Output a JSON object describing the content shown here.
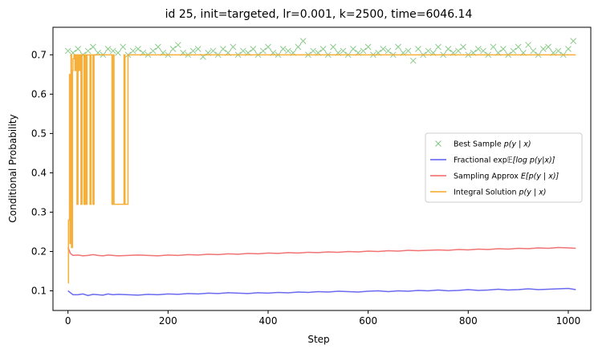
{
  "chart_data": {
    "type": "line",
    "title": "id 25, init=targeted, lr=0.001, k=2500, time=6046.14",
    "xlabel": "Step",
    "ylabel": "Conditional Probability",
    "xlim": [
      -30,
      1045
    ],
    "ylim": [
      0.05,
      0.77
    ],
    "xticks": [
      0,
      200,
      400,
      600,
      800,
      1000
    ],
    "yticks": [
      0.1,
      0.2,
      0.3,
      0.4,
      0.5,
      0.6,
      0.7
    ],
    "grid": false,
    "legend_position": "center-right",
    "series": [
      {
        "name": "Best Sample p(y | x)",
        "kind": "scatter",
        "marker": "x",
        "color": "#2ca02c",
        "x": [
          0,
          10,
          20,
          30,
          40,
          50,
          60,
          70,
          80,
          90,
          100,
          110,
          120,
          130,
          140,
          150,
          160,
          170,
          180,
          190,
          200,
          210,
          220,
          230,
          240,
          250,
          260,
          270,
          280,
          290,
          300,
          310,
          320,
          330,
          340,
          350,
          360,
          370,
          380,
          390,
          400,
          410,
          420,
          430,
          440,
          450,
          460,
          470,
          480,
          490,
          500,
          510,
          520,
          530,
          540,
          550,
          560,
          570,
          580,
          590,
          600,
          610,
          620,
          630,
          640,
          650,
          660,
          670,
          680,
          690,
          700,
          710,
          720,
          730,
          740,
          750,
          760,
          770,
          780,
          790,
          800,
          810,
          820,
          830,
          840,
          850,
          860,
          870,
          880,
          890,
          900,
          910,
          920,
          930,
          940,
          950,
          960,
          970,
          980,
          990,
          1000,
          1010
        ],
        "y": [
          0.71,
          0.705,
          0.715,
          0.7,
          0.71,
          0.72,
          0.705,
          0.7,
          0.715,
          0.71,
          0.705,
          0.72,
          0.7,
          0.71,
          0.715,
          0.705,
          0.7,
          0.71,
          0.72,
          0.705,
          0.7,
          0.715,
          0.725,
          0.705,
          0.7,
          0.71,
          0.715,
          0.695,
          0.705,
          0.71,
          0.7,
          0.715,
          0.705,
          0.72,
          0.7,
          0.71,
          0.705,
          0.715,
          0.7,
          0.71,
          0.72,
          0.705,
          0.7,
          0.715,
          0.71,
          0.705,
          0.72,
          0.735,
          0.7,
          0.71,
          0.705,
          0.715,
          0.7,
          0.72,
          0.705,
          0.71,
          0.7,
          0.715,
          0.705,
          0.71,
          0.72,
          0.7,
          0.705,
          0.715,
          0.71,
          0.7,
          0.72,
          0.705,
          0.71,
          0.685,
          0.715,
          0.7,
          0.71,
          0.705,
          0.72,
          0.7,
          0.715,
          0.705,
          0.71,
          0.72,
          0.7,
          0.705,
          0.715,
          0.71,
          0.7,
          0.72,
          0.705,
          0.715,
          0.7,
          0.71,
          0.72,
          0.705,
          0.725,
          0.71,
          0.7,
          0.715,
          0.72,
          0.705,
          0.71,
          0.7,
          0.715,
          0.735
        ]
      },
      {
        "name": "Fractional exp𝔼[log p(y|x)]",
        "kind": "line",
        "color": "#5a5af0",
        "x": [
          0,
          5,
          10,
          20,
          30,
          40,
          50,
          60,
          70,
          80,
          90,
          100,
          120,
          140,
          160,
          180,
          200,
          220,
          240,
          260,
          280,
          300,
          320,
          340,
          360,
          380,
          400,
          420,
          440,
          460,
          480,
          500,
          520,
          540,
          560,
          580,
          600,
          620,
          640,
          660,
          680,
          700,
          720,
          740,
          760,
          780,
          800,
          820,
          840,
          860,
          880,
          900,
          920,
          940,
          960,
          980,
          1000,
          1015
        ],
        "y": [
          0.1,
          0.095,
          0.09,
          0.09,
          0.092,
          0.088,
          0.091,
          0.09,
          0.089,
          0.092,
          0.09,
          0.091,
          0.09,
          0.089,
          0.091,
          0.09,
          0.092,
          0.091,
          0.093,
          0.092,
          0.094,
          0.093,
          0.095,
          0.094,
          0.093,
          0.095,
          0.094,
          0.096,
          0.095,
          0.097,
          0.096,
          0.098,
          0.097,
          0.099,
          0.098,
          0.097,
          0.099,
          0.1,
          0.098,
          0.1,
          0.099,
          0.101,
          0.1,
          0.102,
          0.1,
          0.101,
          0.103,
          0.101,
          0.102,
          0.104,
          0.102,
          0.103,
          0.105,
          0.103,
          0.104,
          0.105,
          0.106,
          0.103
        ]
      },
      {
        "name": "Sampling Approx E[p(y | x)]",
        "kind": "line",
        "color": "#f06464",
        "x": [
          0,
          5,
          10,
          20,
          30,
          40,
          50,
          60,
          70,
          80,
          90,
          100,
          120,
          140,
          160,
          180,
          200,
          220,
          240,
          260,
          280,
          300,
          320,
          340,
          360,
          380,
          400,
          420,
          440,
          460,
          480,
          500,
          520,
          540,
          560,
          580,
          600,
          620,
          640,
          660,
          680,
          700,
          720,
          740,
          760,
          780,
          800,
          820,
          840,
          860,
          880,
          900,
          920,
          940,
          960,
          980,
          1000,
          1015
        ],
        "y": [
          0.21,
          0.195,
          0.19,
          0.191,
          0.189,
          0.19,
          0.192,
          0.19,
          0.189,
          0.191,
          0.19,
          0.189,
          0.19,
          0.191,
          0.19,
          0.189,
          0.191,
          0.19,
          0.192,
          0.191,
          0.193,
          0.192,
          0.194,
          0.193,
          0.195,
          0.194,
          0.196,
          0.195,
          0.197,
          0.196,
          0.198,
          0.197,
          0.199,
          0.198,
          0.2,
          0.199,
          0.201,
          0.2,
          0.202,
          0.201,
          0.203,
          0.202,
          0.203,
          0.204,
          0.203,
          0.205,
          0.204,
          0.206,
          0.205,
          0.207,
          0.206,
          0.208,
          0.207,
          0.209,
          0.208,
          0.21,
          0.209,
          0.208
        ]
      },
      {
        "name": "Integral Solution p(y | x)",
        "kind": "line",
        "color": "#f5a623",
        "x": [
          0,
          1,
          3,
          4,
          6,
          7,
          9,
          10,
          12,
          14,
          16,
          18,
          20,
          22,
          24,
          26,
          28,
          30,
          32,
          34,
          36,
          38,
          40,
          42,
          44,
          46,
          48,
          50,
          52,
          54,
          56,
          58,
          60,
          62,
          86,
          88,
          90,
          92,
          94,
          110,
          112,
          114,
          116,
          118,
          120,
          1015
        ],
        "y": [
          0.12,
          0.28,
          0.65,
          0.22,
          0.7,
          0.21,
          0.66,
          0.69,
          0.7,
          0.66,
          0.7,
          0.32,
          0.7,
          0.66,
          0.7,
          0.32,
          0.7,
          0.7,
          0.32,
          0.7,
          0.32,
          0.7,
          0.7,
          0.7,
          0.32,
          0.7,
          0.7,
          0.32,
          0.7,
          0.7,
          0.7,
          0.7,
          0.7,
          0.7,
          0.7,
          0.32,
          0.7,
          0.32,
          0.32,
          0.32,
          0.7,
          0.32,
          0.32,
          0.32,
          0.7,
          0.7
        ]
      }
    ]
  }
}
